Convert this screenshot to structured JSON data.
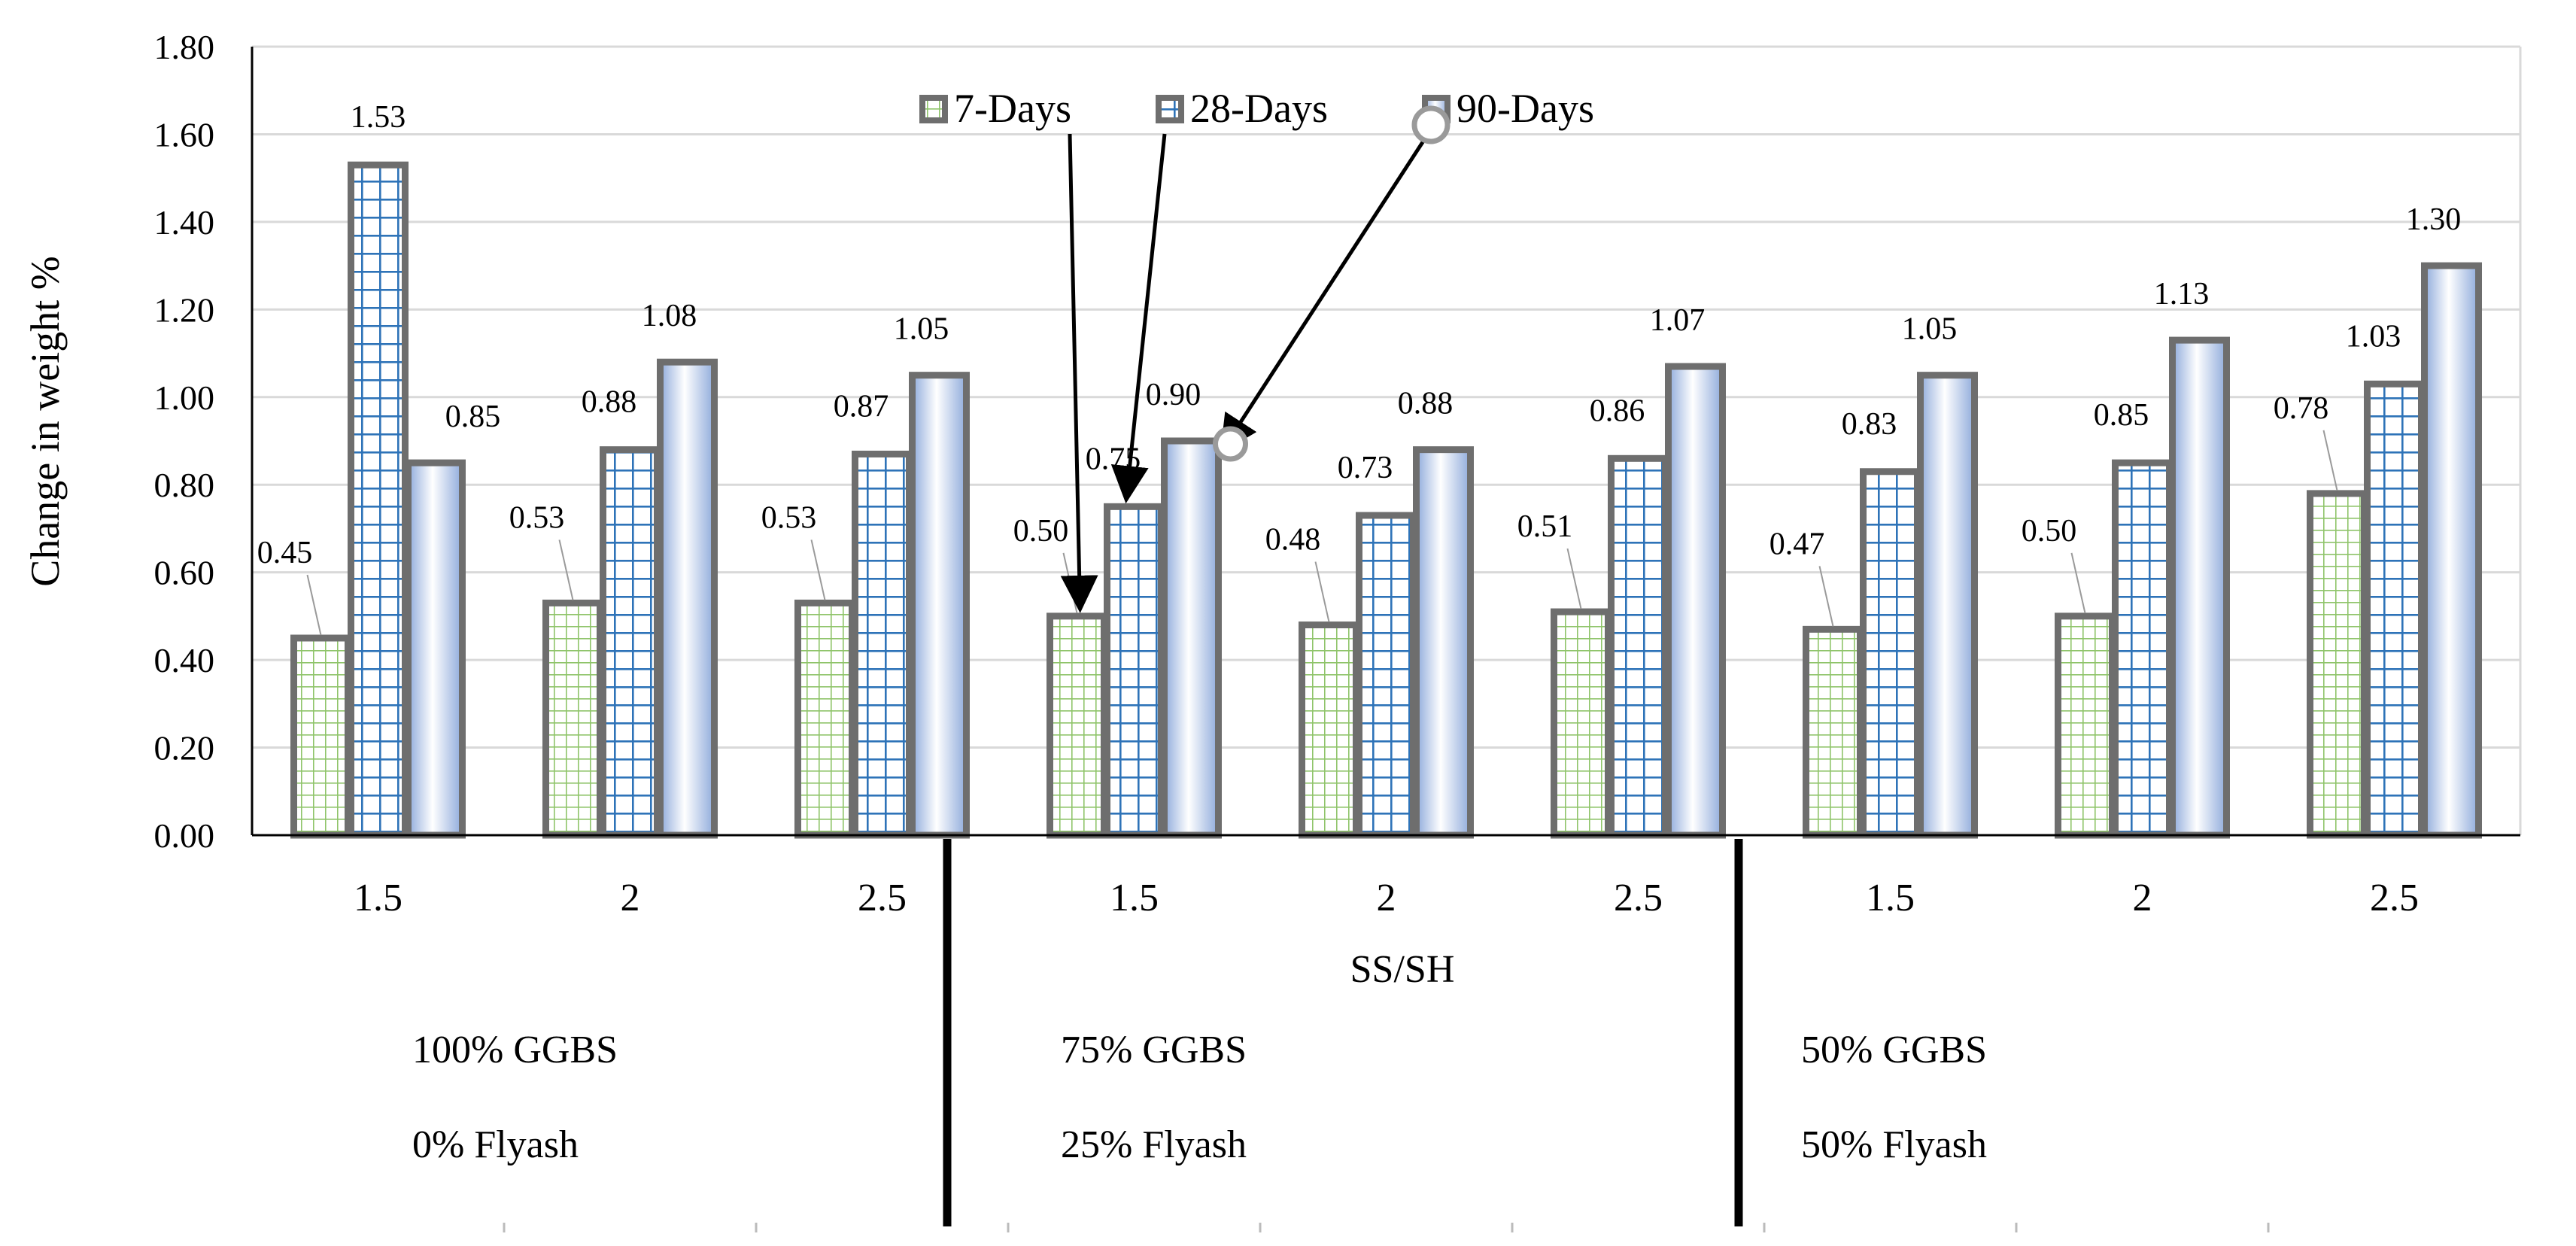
{
  "chart_data": {
    "type": "bar",
    "title": "",
    "xlabel": "SS/SH",
    "ylabel": "Change in weight %",
    "ylim": [
      0,
      1.8
    ],
    "ytick_step": 0.2,
    "yticks": [
      "0.00",
      "0.20",
      "0.40",
      "0.60",
      "0.80",
      "1.00",
      "1.20",
      "1.40",
      "1.60",
      "1.80"
    ],
    "grid": true,
    "categories": [
      "1.5",
      "2",
      "2.5",
      "1.5",
      "2",
      "2.5",
      "1.5",
      "2",
      "2.5"
    ],
    "series": [
      {
        "name": "7-Days",
        "values": [
          0.45,
          0.53,
          0.53,
          0.5,
          0.48,
          0.51,
          0.47,
          0.5,
          0.78
        ],
        "labels": [
          "0.45",
          "0.53",
          "0.53",
          "0.50",
          "0.48",
          "0.51",
          "0.47",
          "0.50",
          "0.78"
        ],
        "pattern": "green-grid"
      },
      {
        "name": "28-Days",
        "values": [
          1.53,
          0.88,
          0.87,
          0.75,
          0.73,
          0.86,
          0.83,
          0.85,
          1.03
        ],
        "labels": [
          "1.53",
          "0.88",
          "0.87",
          "0.75",
          "0.73",
          "0.86",
          "0.83",
          "0.85",
          "1.03"
        ],
        "pattern": "blue-grid"
      },
      {
        "name": "90-Days",
        "values": [
          0.85,
          1.08,
          1.05,
          0.9,
          0.88,
          1.07,
          1.05,
          1.13,
          1.3
        ],
        "labels": [
          "0.85",
          "1.08",
          "1.05",
          "0.90",
          "0.88",
          "1.07",
          "1.05",
          "1.13",
          "1.30"
        ],
        "pattern": "blue-gradient"
      }
    ],
    "groups": [
      {
        "line1": "100% GGBS",
        "line2": "0% Flyash"
      },
      {
        "line1": "75% GGBS",
        "line2": "25% Flyash"
      },
      {
        "line1": "50% GGBS",
        "line2": "50% Flyash"
      }
    ],
    "legend_position": "top-center",
    "colors": {
      "bar_border": "#6e6e6e",
      "green_grid": "#8fc46a",
      "blue_grid": "#2e73b8",
      "gradient_top": "#ffffff",
      "gradient_bottom": "#93aedc",
      "gridline": "#d9d9d9",
      "axis": "#000000"
    }
  }
}
